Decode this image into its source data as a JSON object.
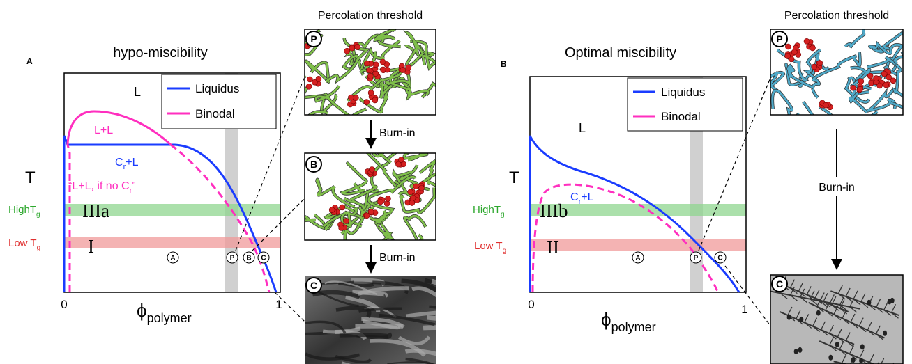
{
  "panel_a": {
    "letter": "A",
    "title": "hypo-miscibility",
    "region_l": "L",
    "legend": [
      "Liquidus",
      "Binodal"
    ],
    "ll": "L+L",
    "crl": {
      "base": "C",
      "sub": "r",
      "tail": "+L"
    },
    "note": {
      "base": "“L+L, if no C",
      "sub": "r",
      "tail": "”"
    },
    "t_axis": "T",
    "high_tg": {
      "base": "HighT",
      "sub": "g"
    },
    "low_tg": {
      "base": "Low T",
      "sub": "g"
    },
    "zone_high": "IIIa",
    "zone_low": "I",
    "markers": [
      "A",
      "P",
      "B",
      "C"
    ],
    "x_ticks": [
      "0",
      "1"
    ],
    "x_label": {
      "base": "ϕ",
      "sub": "polymer"
    },
    "images": {
      "header": "Percolation threshold",
      "steps": [
        "P",
        "B",
        "C"
      ],
      "arrows": [
        "Burn-in",
        "Burn-in"
      ]
    }
  },
  "panel_b": {
    "letter": "B",
    "title": "Optimal miscibility",
    "region_l": "L",
    "legend": [
      "Liquidus",
      "Binodal"
    ],
    "crl": {
      "base": "C",
      "sub": "r",
      "tail": "+L"
    },
    "t_axis": "T",
    "high_tg": {
      "base": "HighT",
      "sub": "g"
    },
    "low_tg": {
      "base": "Low T",
      "sub": "g"
    },
    "zone_high": "IIIb",
    "zone_low": "II",
    "markers": [
      "A",
      "P",
      "C"
    ],
    "x_ticks": [
      "0",
      "1"
    ],
    "x_label": {
      "base": "ϕ",
      "sub": "polymer"
    },
    "images": {
      "header": "Percolation threshold",
      "steps": [
        "P",
        "C"
      ],
      "arrows": [
        "Burn-in"
      ]
    }
  }
}
